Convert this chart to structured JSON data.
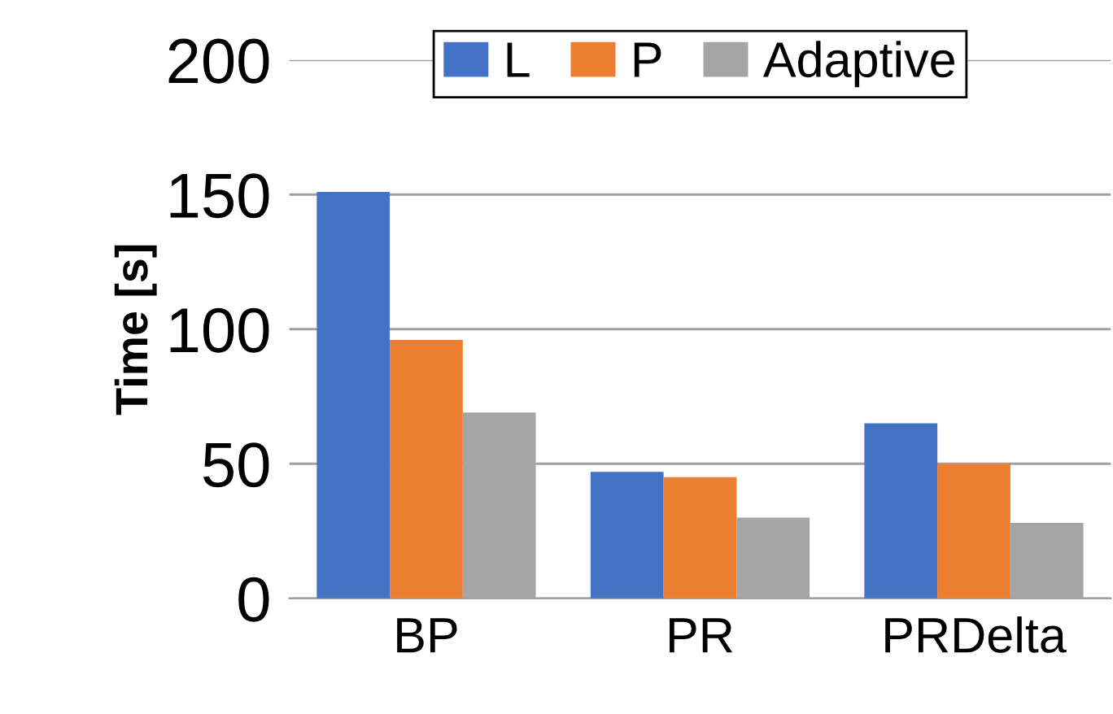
{
  "chart_data": {
    "type": "bar",
    "ylabel": "Time [s]",
    "categories": [
      "BP",
      "PR",
      "PRDelta"
    ],
    "series": [
      {
        "name": "L",
        "color": "#4472c4",
        "values": [
          151,
          47,
          65
        ]
      },
      {
        "name": "P",
        "color": "#ed7d31",
        "values": [
          96,
          45,
          50
        ]
      },
      {
        "name": "Adaptive",
        "color": "#a5a5a5",
        "values": [
          69,
          30,
          28
        ]
      }
    ],
    "ylim": [
      0,
      200
    ],
    "yticks": [
      0,
      50,
      100,
      150,
      200
    ],
    "grid": "y",
    "legend": "top"
  }
}
